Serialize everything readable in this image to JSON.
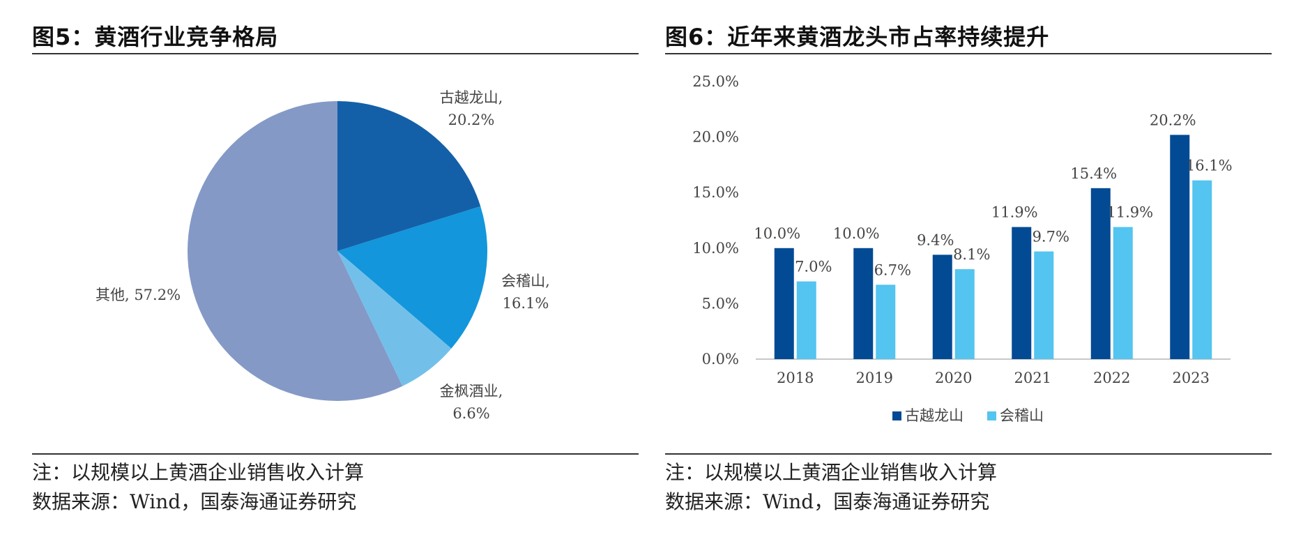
{
  "figures": [
    {
      "title": "图5：黄酒行业竞争格局",
      "note": "注：以规模以上黄酒企业销售收入计算",
      "source": "数据来源：Wind，国泰海通证券研究",
      "chart_data": {
        "type": "pie",
        "slices": [
          {
            "name": "古越龙山",
            "label": "古越龙山,",
            "value_label": "20.2%",
            "value": 20.2,
            "color": "#1460A8"
          },
          {
            "name": "会稽山",
            "label": "会稽山,",
            "value_label": "16.1%",
            "value": 16.1,
            "color": "#1396DB"
          },
          {
            "name": "金枫酒业",
            "label": "金枫酒业,",
            "value_label": "6.6%",
            "value": 6.6,
            "color": "#72C0EA"
          },
          {
            "name": "其他",
            "label": "其他, 57.2%",
            "value_label": "",
            "value": 57.2,
            "color": "#8499C6"
          }
        ]
      }
    },
    {
      "title": "图6：近年来黄酒龙头市占率持续提升",
      "note": "注：以规模以上黄酒企业销售收入计算",
      "source": "数据来源：Wind，国泰海通证券研究",
      "chart_data": {
        "type": "bar",
        "categories": [
          "2018",
          "2019",
          "2020",
          "2021",
          "2022",
          "2023"
        ],
        "series": [
          {
            "name": "古越龙山",
            "values": [
              10.0,
              10.0,
              9.4,
              11.9,
              15.4,
              20.2
            ],
            "labels": [
              "10.0%",
              "10.0%",
              "9.4%",
              "11.9%",
              "15.4%",
              "20.2%"
            ],
            "color": "#034A94"
          },
          {
            "name": "会稽山",
            "values": [
              7.0,
              6.7,
              8.1,
              9.7,
              11.9,
              16.1
            ],
            "labels": [
              "7.0%",
              "6.7%",
              "8.1%",
              "9.7%",
              "11.9%",
              "16.1%"
            ],
            "color": "#54C4F0"
          }
        ],
        "yticks": [
          0,
          5,
          10,
          15,
          20,
          25
        ],
        "ytick_labels": [
          "0.0%",
          "5.0%",
          "10.0%",
          "15.0%",
          "20.0%",
          "25.0%"
        ],
        "ylim": [
          0,
          25
        ],
        "grid": false,
        "legend": "bottom"
      }
    }
  ]
}
